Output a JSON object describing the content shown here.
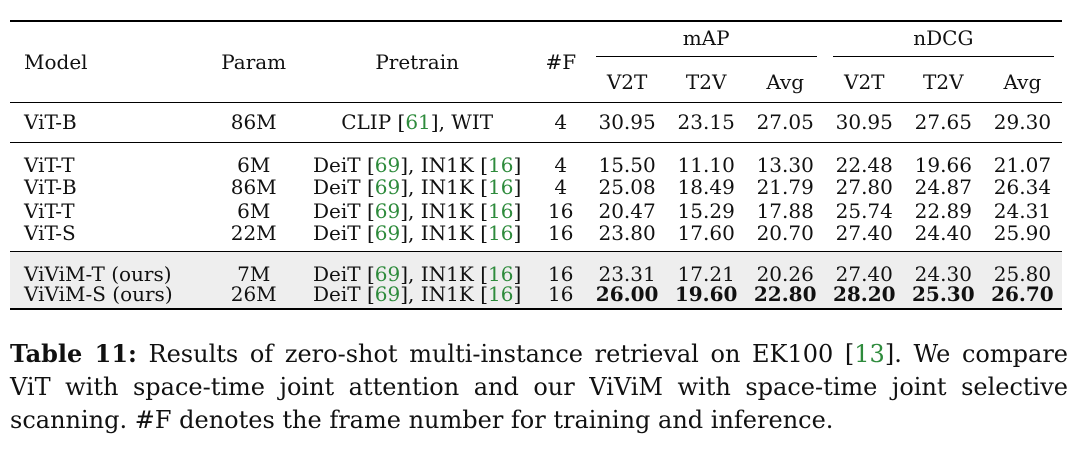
{
  "table": {
    "headers": {
      "model": "Model",
      "param": "Param",
      "pretrain": "Pretrain",
      "frames": "#F",
      "map_group": "mAP",
      "ndcg_group": "nDCG",
      "sub": [
        "V2T",
        "T2V",
        "Avg",
        "V2T",
        "T2V",
        "Avg"
      ]
    },
    "groups": [
      [
        {
          "model": "ViT-B",
          "param": "86M",
          "pretrain": {
            "pre": "CLIP [",
            "c1": "61",
            "mid": "], WIT",
            "c2": "",
            "post": ""
          },
          "frames": "4",
          "values": [
            "30.95",
            "23.15",
            "27.05",
            "30.95",
            "27.65",
            "29.30"
          ]
        }
      ],
      [
        {
          "model": "ViT-T",
          "param": "6M",
          "pretrain": {
            "pre": "DeiT [",
            "c1": "69",
            "mid": "], IN1K [",
            "c2": "16",
            "post": "]"
          },
          "frames": "4",
          "values": [
            "15.50",
            "11.10",
            "13.30",
            "22.48",
            "19.66",
            "21.07"
          ]
        },
        {
          "model": "ViT-B",
          "param": "86M",
          "pretrain": {
            "pre": "DeiT [",
            "c1": "69",
            "mid": "], IN1K [",
            "c2": "16",
            "post": "]"
          },
          "frames": "4",
          "values": [
            "25.08",
            "18.49",
            "21.79",
            "27.80",
            "24.87",
            "26.34"
          ]
        },
        {
          "model": "ViT-T",
          "param": "6M",
          "pretrain": {
            "pre": "DeiT [",
            "c1": "69",
            "mid": "], IN1K [",
            "c2": "16",
            "post": "]"
          },
          "frames": "16",
          "values": [
            "20.47",
            "15.29",
            "17.88",
            "25.74",
            "22.89",
            "24.31"
          ]
        },
        {
          "model": "ViT-S",
          "param": "22M",
          "pretrain": {
            "pre": "DeiT [",
            "c1": "69",
            "mid": "], IN1K [",
            "c2": "16",
            "post": "]"
          },
          "frames": "16",
          "values": [
            "23.80",
            "17.60",
            "20.70",
            "27.40",
            "24.40",
            "25.90"
          ]
        }
      ],
      [
        {
          "model": "ViViM-T (ours)",
          "param": "7M",
          "pretrain": {
            "pre": "DeiT [",
            "c1": "69",
            "mid": "], IN1K [",
            "c2": "16",
            "post": "]"
          },
          "frames": "16",
          "values": [
            "23.31",
            "17.21",
            "20.26",
            "27.40",
            "24.30",
            "25.80"
          ]
        },
        {
          "model": "ViViM-S (ours)",
          "param": "26M",
          "pretrain": {
            "pre": "DeiT [",
            "c1": "69",
            "mid": "], IN1K [",
            "c2": "16",
            "post": "]"
          },
          "frames": "16",
          "values": [
            "26.00",
            "19.60",
            "22.80",
            "28.20",
            "25.30",
            "26.70"
          ],
          "bold": true
        }
      ]
    ]
  },
  "caption": {
    "label": "Table 11:",
    "text_before": " Results of zero-shot multi-instance retrieval on EK100 [",
    "cite": "13",
    "text_after": "]. We compare ViT with space-time joint attention and our ViViM with space-time joint selective scanning. #F denotes the frame number for training and inference."
  },
  "colors": {
    "citation": "#2e8b3c",
    "highlight_row": "#eeeeee",
    "rule": "#000000"
  }
}
